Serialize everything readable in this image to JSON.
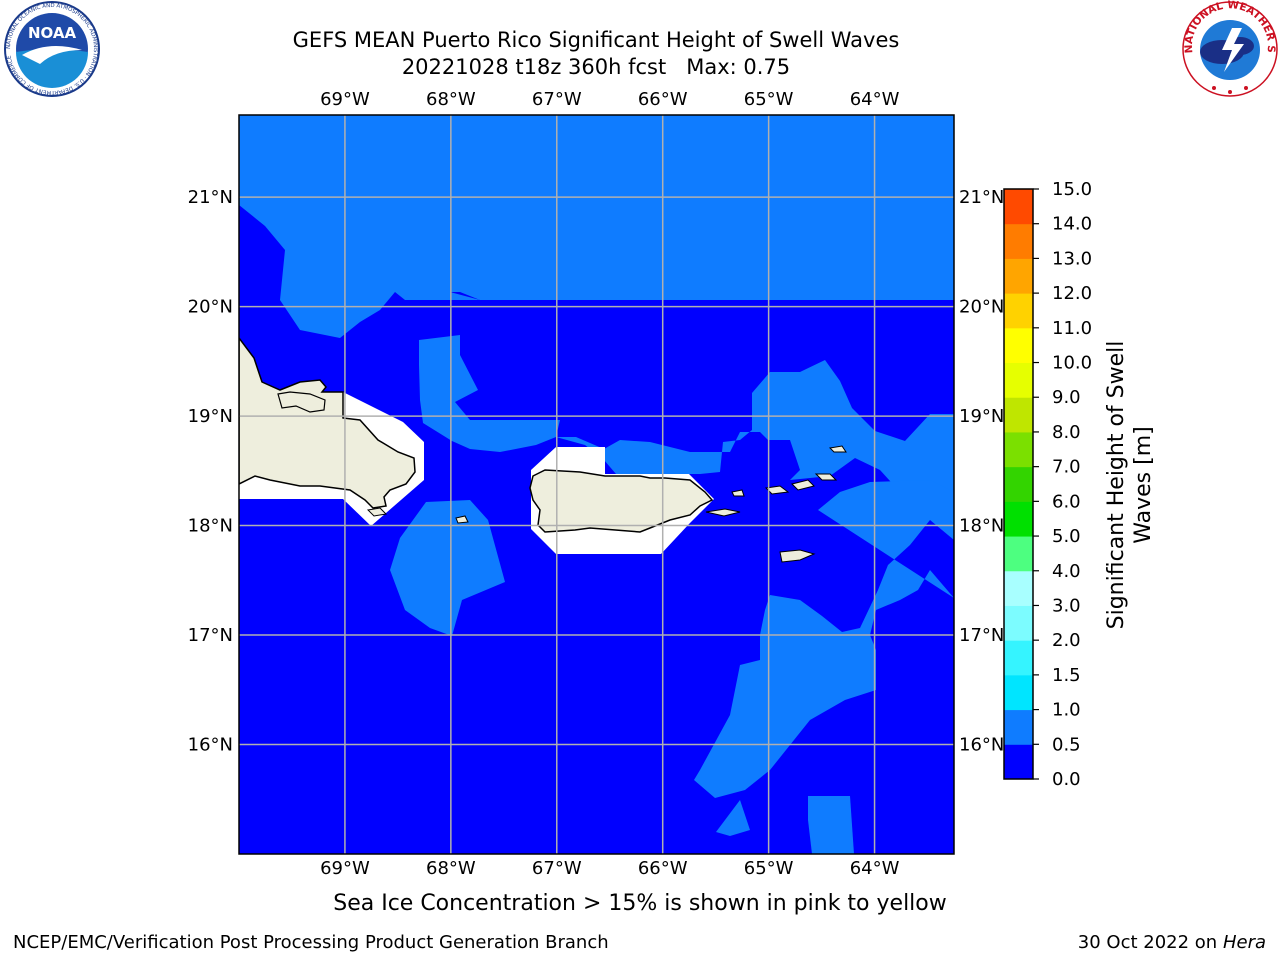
{
  "title": {
    "line1": "GEFS MEAN Puerto Rico Significant Height of Swell Waves",
    "line2": "20221028 t18z 360h fcst   Max: 0.75"
  },
  "map": {
    "lon_range": [
      -70.0,
      -63.25
    ],
    "lat_range": [
      15.0,
      21.75
    ],
    "lon_ticks": [
      "69°W",
      "68°W",
      "67°W",
      "66°W",
      "65°W",
      "64°W"
    ],
    "lat_ticks": [
      "21°N",
      "20°N",
      "19°N",
      "18°N",
      "17°N",
      "16°N"
    ],
    "land_color": "#eeeedd",
    "grid": true
  },
  "colorbar": {
    "label": "Significant Height of Swell Waves [m]",
    "tick_labels": [
      "0.0",
      "0.5",
      "1.0",
      "1.5",
      "2.0",
      "3.0",
      "4.0",
      "5.0",
      "6.0",
      "7.0",
      "8.0",
      "9.0",
      "10.0",
      "11.0",
      "12.0",
      "13.0",
      "14.0",
      "15.0"
    ],
    "colors": [
      "#0000ff",
      "#0f7cff",
      "#00e5ff",
      "#35f4ff",
      "#7cfcff",
      "#a8ffff",
      "#4dff80",
      "#00e000",
      "#33d400",
      "#7be000",
      "#bfe600",
      "#e6ff00",
      "#ffff00",
      "#ffd200",
      "#ffa500",
      "#ff7c00",
      "#ff4a00",
      "#ff1a00",
      "#ff0000"
    ]
  },
  "caption": "Sea Ice Concentration > 15% is shown in pink to yellow",
  "footer": {
    "left": "NCEP/EMC/Verification Post Processing Product Generation Branch",
    "right_date": "30 Oct 2022 on ",
    "right_host": "Hera"
  },
  "logos": {
    "noaa": {
      "text": "NOAA",
      "ring": "NATIONAL OCEANIC AND ATMOSPHERIC ADMINISTRATION · U.S. DEPARTMENT OF COMMERCE"
    },
    "nws": {
      "ring": "NATIONAL WEATHER SERVICE"
    }
  }
}
